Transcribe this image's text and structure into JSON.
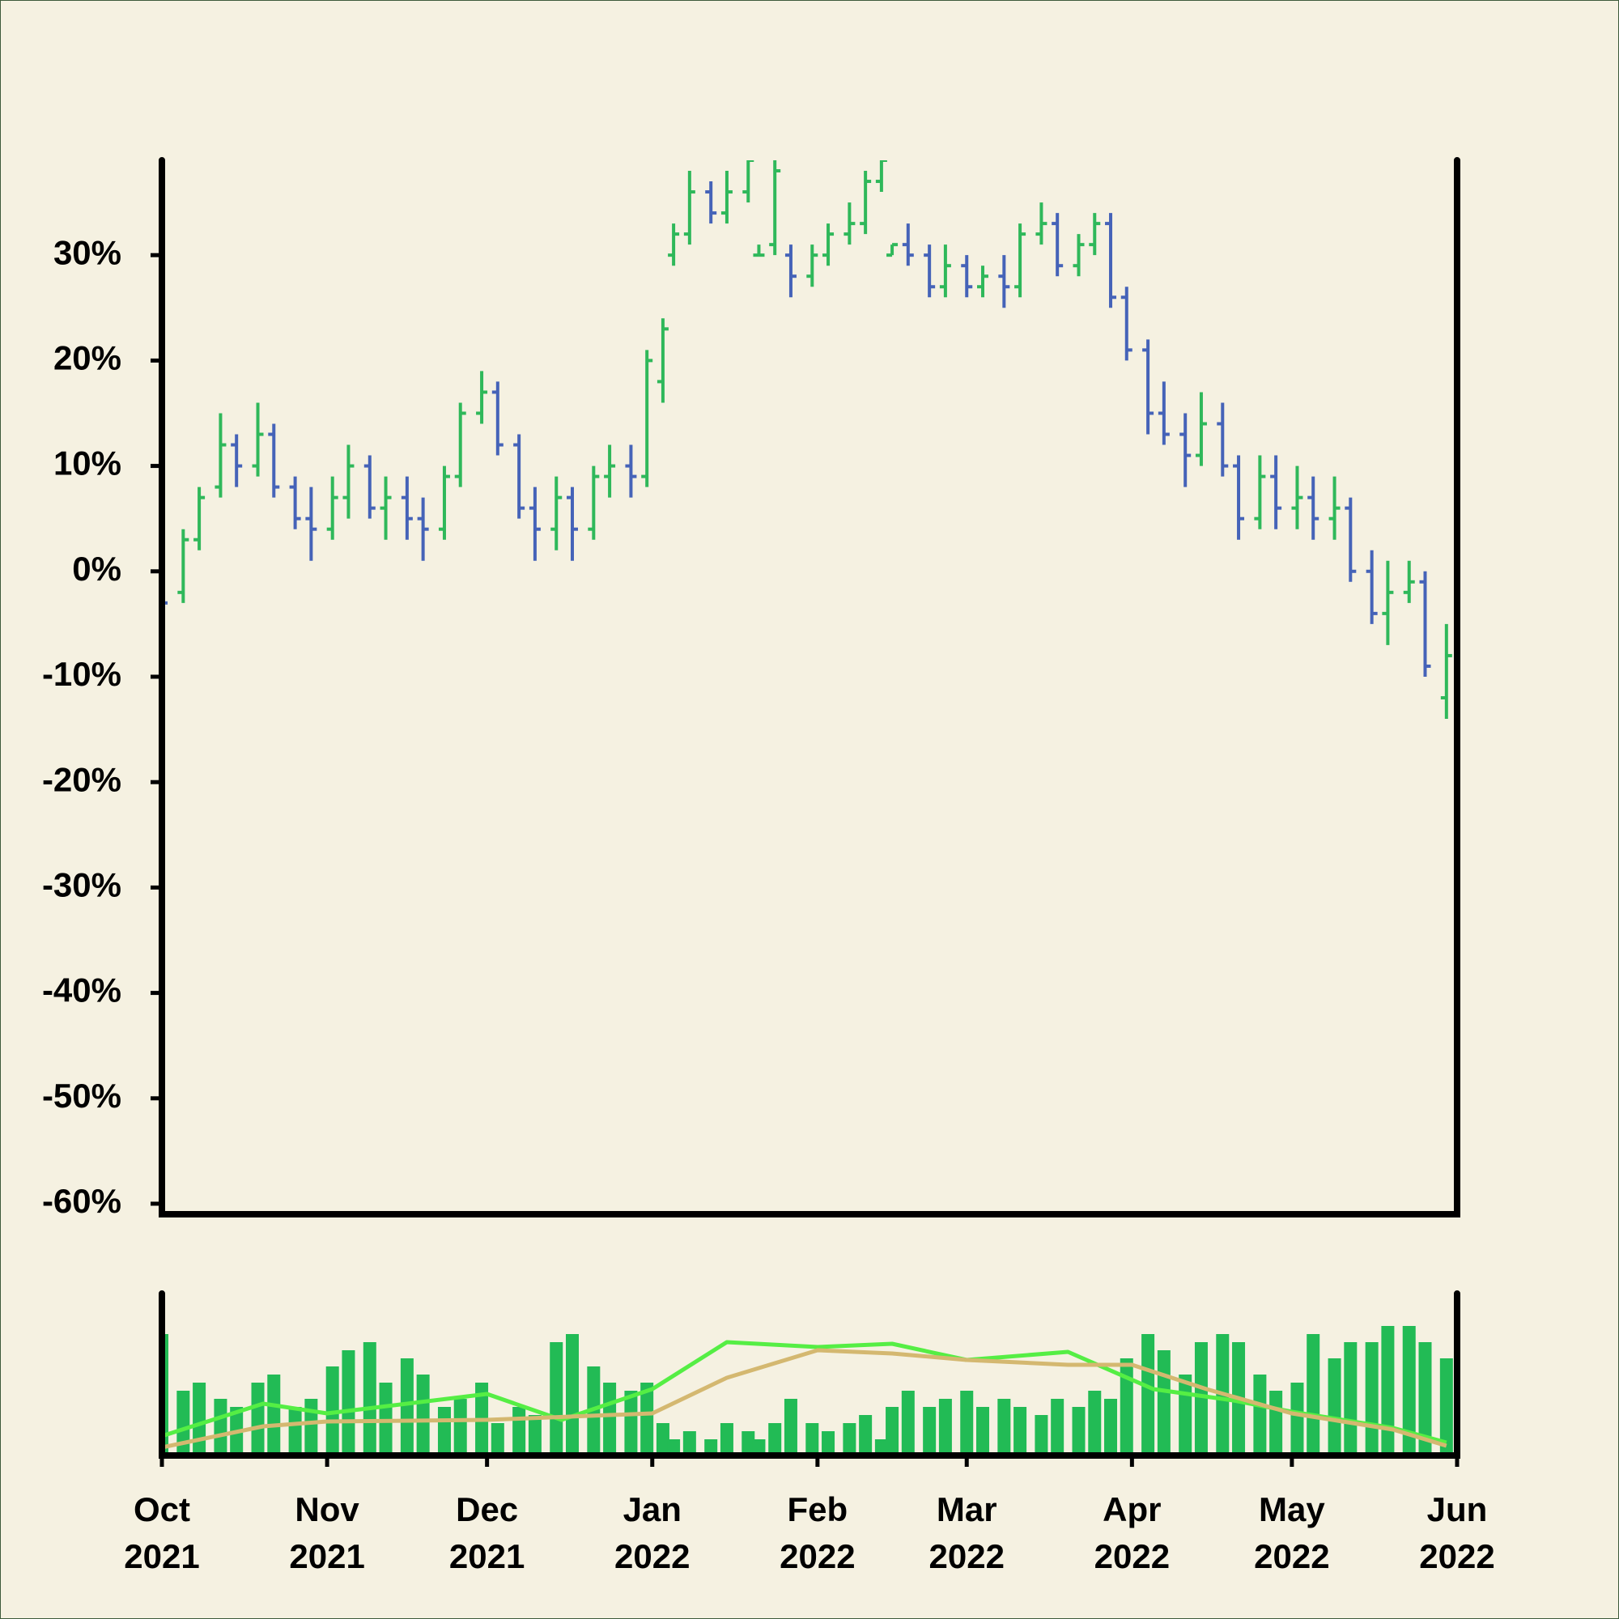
{
  "chart_data": {
    "type": "ohlc",
    "up_color": "#2fb85a",
    "down_color": "#4563b8",
    "x": [
      "2021-10-01",
      "2021-10-05",
      "2021-10-08",
      "2021-10-12",
      "2021-10-15",
      "2021-10-19",
      "2021-10-22",
      "2021-10-26",
      "2021-10-29",
      "2021-11-02",
      "2021-11-05",
      "2021-11-09",
      "2021-11-12",
      "2021-11-16",
      "2021-11-19",
      "2021-11-23",
      "2021-11-26",
      "2021-11-30",
      "2021-12-03",
      "2021-12-07",
      "2021-12-10",
      "2021-12-14",
      "2021-12-17",
      "2021-12-21",
      "2021-12-24",
      "2021-12-28",
      "2021-12-31",
      "2022-01-03",
      "2022-01-05",
      "2022-01-08",
      "2022-01-12",
      "2022-01-15",
      "2022-01-19",
      "2022-01-21",
      "2022-01-24",
      "2022-01-27",
      "2022-01-31",
      "2022-02-03",
      "2022-02-07",
      "2022-02-10",
      "2022-02-13",
      "2022-02-15",
      "2022-02-18",
      "2022-02-22",
      "2022-02-25",
      "2022-03-01",
      "2022-03-04",
      "2022-03-08",
      "2022-03-11",
      "2022-03-15",
      "2022-03-18",
      "2022-03-22",
      "2022-03-25",
      "2022-03-28",
      "2022-03-31",
      "2022-04-04",
      "2022-04-07",
      "2022-04-11",
      "2022-04-14",
      "2022-04-18",
      "2022-04-21",
      "2022-04-25",
      "2022-04-28",
      "2022-05-02",
      "2022-05-05",
      "2022-05-09",
      "2022-05-12",
      "2022-05-16",
      "2022-05-19",
      "2022-05-23",
      "2022-05-26",
      "2022-05-30"
    ],
    "open": [
      0,
      -2,
      3,
      8,
      12,
      10,
      13,
      8,
      5,
      4,
      7,
      10,
      6,
      7,
      5,
      4,
      9,
      15,
      17,
      12,
      6,
      4,
      7,
      4,
      9,
      10,
      9,
      18,
      30,
      32,
      36,
      34,
      36,
      30,
      31,
      30,
      28,
      30,
      32,
      33,
      37,
      30,
      31,
      30,
      27,
      29,
      27,
      28,
      27,
      32,
      33,
      29,
      31,
      33,
      26,
      21,
      15,
      13,
      11,
      14,
      10,
      5,
      9,
      6,
      7,
      5,
      6,
      0,
      -4,
      -2,
      -1,
      -12
    ],
    "high": [
      1,
      4,
      8,
      15,
      13,
      16,
      14,
      9,
      8,
      9,
      12,
      11,
      9,
      9,
      7,
      10,
      16,
      19,
      18,
      13,
      8,
      9,
      8,
      10,
      12,
      12,
      21,
      24,
      33,
      38,
      37,
      38,
      40,
      31,
      40,
      31,
      31,
      33,
      35,
      38,
      40,
      31,
      33,
      31,
      31,
      30,
      29,
      30,
      33,
      35,
      34,
      32,
      34,
      34,
      27,
      22,
      18,
      15,
      17,
      16,
      11,
      11,
      11,
      10,
      9,
      9,
      7,
      2,
      1,
      1,
      0,
      -5
    ],
    "low": [
      -6,
      -3,
      2,
      7,
      8,
      9,
      7,
      4,
      1,
      3,
      5,
      5,
      3,
      3,
      1,
      3,
      8,
      14,
      11,
      5,
      1,
      2,
      1,
      3,
      7,
      7,
      8,
      16,
      29,
      31,
      33,
      33,
      35,
      30,
      30,
      26,
      27,
      29,
      31,
      32,
      36,
      30,
      29,
      26,
      26,
      26,
      26,
      25,
      26,
      31,
      28,
      28,
      30,
      25,
      20,
      13,
      12,
      8,
      10,
      9,
      3,
      4,
      4,
      4,
      3,
      3,
      -1,
      -5,
      -7,
      -3,
      -10,
      -14
    ],
    "close": [
      -3,
      3,
      7,
      12,
      10,
      13,
      8,
      5,
      4,
      7,
      10,
      6,
      7,
      5,
      4,
      9,
      15,
      17,
      12,
      6,
      4,
      7,
      4,
      9,
      10,
      9,
      20,
      23,
      32,
      36,
      34,
      36,
      39,
      30,
      38,
      28,
      30,
      32,
      33,
      37,
      39,
      31,
      30,
      27,
      29,
      27,
      28,
      27,
      32,
      33,
      29,
      31,
      33,
      26,
      21,
      15,
      13,
      11,
      14,
      10,
      5,
      9,
      6,
      7,
      5,
      6,
      0,
      -4,
      -2,
      -1,
      -9,
      -8
    ],
    "ylim": [
      -61,
      39
    ],
    "yticks": [
      {
        "value": -60,
        "label": "-60%"
      },
      {
        "value": -50,
        "label": "-50%"
      },
      {
        "value": -40,
        "label": "-40%"
      },
      {
        "value": -30,
        "label": "-30%"
      },
      {
        "value": -20,
        "label": "-20%"
      },
      {
        "value": -10,
        "label": "-10%"
      },
      {
        "value": 0,
        "label": "0%"
      },
      {
        "value": 10,
        "label": "10%"
      },
      {
        "value": 20,
        "label": "20%"
      },
      {
        "value": 30,
        "label": "30%"
      }
    ],
    "xlim": [
      "2021-10-01",
      "2022-06-01"
    ],
    "xticks": [
      {
        "value": "2021-10-01",
        "label": "Oct 2021"
      },
      {
        "value": "2021-11-01",
        "label": "Nov 2021"
      },
      {
        "value": "2021-12-01",
        "label": "Dec 2021"
      },
      {
        "value": "2022-01-01",
        "label": "Jan 2022"
      },
      {
        "value": "2022-02-01",
        "label": "Feb 2022"
      },
      {
        "value": "2022-03-01",
        "label": "Mar 2022"
      },
      {
        "value": "2022-04-01",
        "label": "Apr 2022"
      },
      {
        "value": "2022-05-01",
        "label": "May 2022"
      },
      {
        "value": "2022-06-01",
        "label": "Jun 2022"
      }
    ],
    "volume": {
      "color": "#22bb55",
      "ylim": [
        0,
        100
      ],
      "values": [
        75,
        40,
        45,
        35,
        30,
        45,
        50,
        30,
        35,
        55,
        65,
        70,
        45,
        60,
        50,
        30,
        35,
        45,
        20,
        30,
        25,
        70,
        75,
        55,
        45,
        40,
        45,
        20,
        10,
        15,
        10,
        20,
        15,
        10,
        20,
        35,
        20,
        15,
        20,
        25,
        10,
        30,
        40,
        30,
        35,
        40,
        30,
        35,
        30,
        25,
        35,
        30,
        40,
        35,
        60,
        75,
        65,
        50,
        70,
        75,
        70,
        50,
        40,
        45,
        75,
        60,
        70,
        70,
        80,
        80,
        70,
        60
      ]
    },
    "moving_averages": [
      {
        "color": "#55ee44",
        "x": [
          "2021-10-01",
          "2021-10-20",
          "2021-11-01",
          "2021-12-01",
          "2021-12-15",
          "2022-01-01",
          "2022-01-15",
          "2022-02-01",
          "2022-02-15",
          "2022-03-01",
          "2022-03-20",
          "2022-04-05",
          "2022-04-20",
          "2022-05-01",
          "2022-05-20",
          "2022-05-30"
        ],
        "values": [
          12,
          32,
          26,
          38,
          22,
          41,
          70,
          67,
          69,
          59,
          64,
          41,
          34,
          27,
          17,
          8
        ]
      },
      {
        "color": "#d4b870",
        "x": [
          "2021-10-01",
          "2021-10-20",
          "2021-11-01",
          "2021-12-01",
          "2022-01-01",
          "2022-01-15",
          "2022-02-01",
          "2022-02-15",
          "2022-03-01",
          "2022-03-20",
          "2022-04-01",
          "2022-04-15",
          "2022-05-01",
          "2022-05-20",
          "2022-05-30"
        ],
        "values": [
          5,
          18,
          21,
          22,
          26,
          48,
          65,
          63,
          59,
          56,
          56,
          41,
          26,
          16,
          6
        ]
      }
    ]
  }
}
